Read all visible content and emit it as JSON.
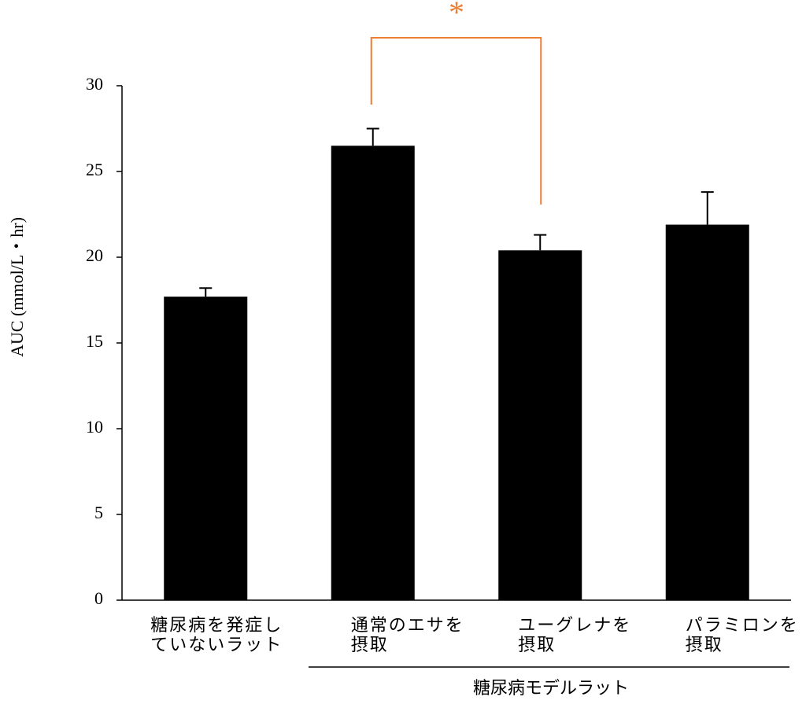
{
  "chart_data": {
    "type": "bar",
    "y_label": "AUC (mmol/L・hr)",
    "categories": [
      [
        "糖尿病を発症し",
        "ていないラット"
      ],
      [
        "通常のエサを",
        "摂取"
      ],
      [
        "ユーグレナを",
        "摂取"
      ],
      [
        "パラミロンを",
        "摂取"
      ]
    ],
    "values": [
      17.7,
      26.5,
      20.4,
      21.9
    ],
    "errors": [
      0.5,
      1.0,
      0.9,
      1.9
    ],
    "color": "#000000",
    "ylim": [
      0,
      30
    ],
    "yticks": [
      0,
      5,
      10,
      15,
      20,
      25,
      30
    ],
    "group_label": "糖尿病モデルラット",
    "significance": {
      "label": "*",
      "color": "#ED7D31"
    }
  }
}
